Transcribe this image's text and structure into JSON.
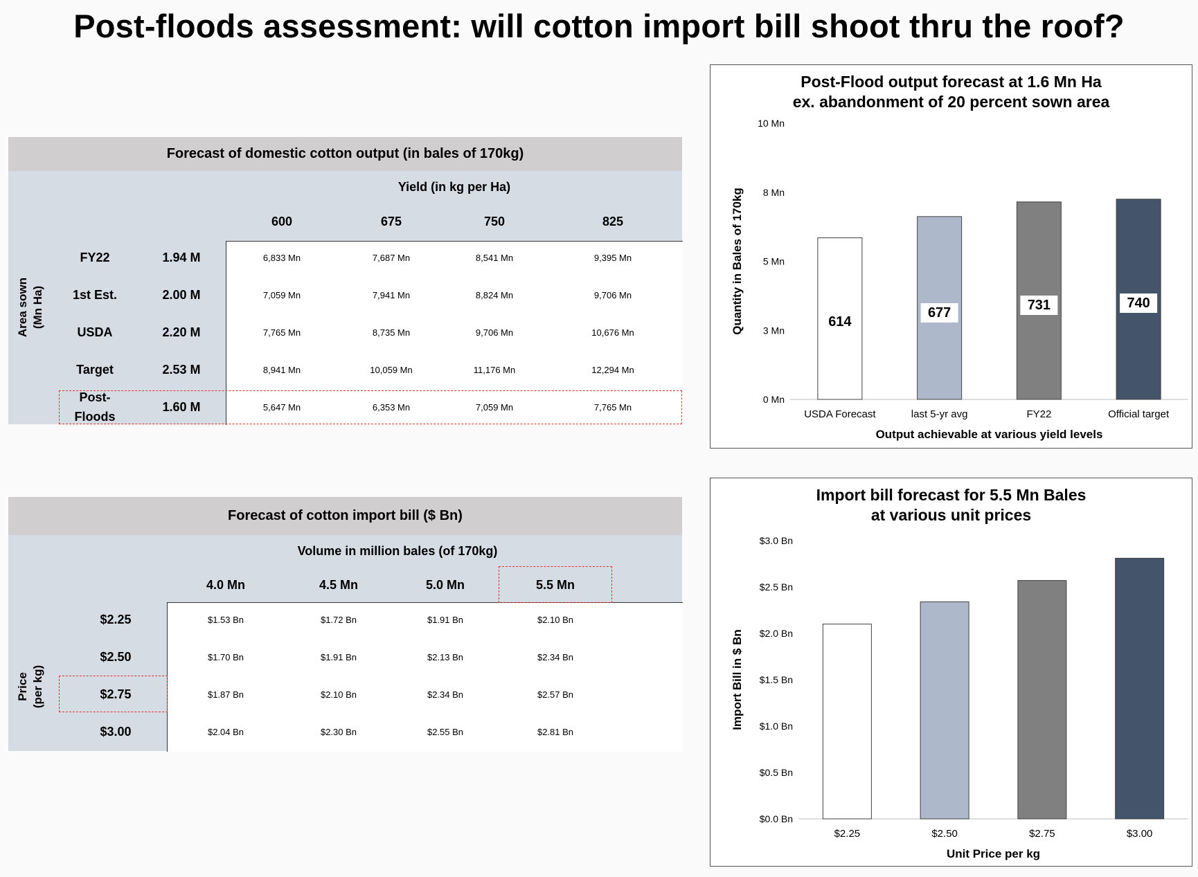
{
  "title": "Post-floods assessment: will cotton import bill shoot thru the roof?",
  "output_table": {
    "title": "Forecast of domestic cotton output (in bales of 170kg)",
    "col_group": "Yield (in kg per Ha)",
    "row_group": [
      "Area sown",
      "(Mn Ha)"
    ],
    "columns": [
      "600",
      "675",
      "750",
      "825"
    ],
    "rows": [
      {
        "label": "FY22",
        "area": "1.94 M",
        "values": [
          "6,833 Mn",
          "7,687 Mn",
          "8,541 Mn",
          "9,395 Mn"
        ]
      },
      {
        "label": "1st Est.",
        "area": "2.00 M",
        "values": [
          "7,059 Mn",
          "7,941 Mn",
          "8,824 Mn",
          "9,706 Mn"
        ]
      },
      {
        "label": "USDA",
        "area": "2.20 M",
        "values": [
          "7,765 Mn",
          "8,735 Mn",
          "9,706 Mn",
          "10,676 Mn"
        ]
      },
      {
        "label": "Target",
        "area": "2.53 M",
        "values": [
          "8,941 Mn",
          "10,059 Mn",
          "11,176 Mn",
          "12,294 Mn"
        ]
      },
      {
        "label": "Post-Floods",
        "label_lines": [
          "Post-",
          "Floods"
        ],
        "area": "1.60 M",
        "values": [
          "5,647 Mn",
          "6,353 Mn",
          "7,059 Mn",
          "7,765 Mn"
        ]
      }
    ],
    "highlight_color": "#d9342b"
  },
  "import_table": {
    "title": "Forecast of cotton import bill ($ Bn)",
    "col_group": "Volume in million bales (of 170kg)",
    "row_group": [
      "Price",
      "(per kg)"
    ],
    "columns": [
      "4.0 Mn",
      "4.5 Mn",
      "5.0 Mn",
      "5.5 Mn"
    ],
    "rows": [
      {
        "label": "$2.25",
        "values": [
          "$1.53 Bn",
          "$1.72 Bn",
          "$1.91 Bn",
          "$2.10 Bn"
        ]
      },
      {
        "label": "$2.50",
        "values": [
          "$1.70 Bn",
          "$1.91 Bn",
          "$2.13 Bn",
          "$2.34 Bn"
        ]
      },
      {
        "label": "$2.75",
        "values": [
          "$1.87 Bn",
          "$2.10 Bn",
          "$2.34 Bn",
          "$2.57 Bn"
        ]
      },
      {
        "label": "$3.00",
        "values": [
          "$2.04 Bn",
          "$2.30 Bn",
          "$2.55 Bn",
          "$2.81 Bn"
        ]
      }
    ]
  },
  "chart_data": [
    {
      "type": "bar",
      "title": [
        "Post-Flood output forecast at 1.6 Mn Ha",
        "ex. abandonment of 20 percent sown area"
      ],
      "xlabel": "Output achievable at various yield levels",
      "ylabel": "Quantity in Bales of 170kg",
      "categories": [
        "USDA Forecast",
        "last 5-yr avg",
        "FY22",
        "Official target"
      ],
      "values": [
        5.85,
        6.62,
        7.15,
        7.25
      ],
      "data_labels": [
        "614",
        "677",
        "731",
        "740"
      ],
      "yticks": [
        "0 Mn",
        "3 Mn",
        "5 Mn",
        "8 Mn",
        "10 Mn"
      ],
      "ylim": [
        0,
        10
      ],
      "grid": false,
      "colors": [
        "#ffffff",
        "#adb9ca",
        "#808080",
        "#44546a"
      ]
    },
    {
      "type": "bar",
      "title": [
        "Import bill forecast for 5.5 Mn Bales",
        "at various unit prices"
      ],
      "xlabel": "Unit Price per kg",
      "ylabel": "Import Bill in $ Bn",
      "categories": [
        "$2.25",
        "$2.50",
        "$2.75",
        "$3.00"
      ],
      "values": [
        2.1,
        2.34,
        2.57,
        2.81
      ],
      "yticks": [
        "$0.0 Bn",
        "$0.5 Bn",
        "$1.0 Bn",
        "$1.5 Bn",
        "$2.0 Bn",
        "$2.5 Bn",
        "$3.0 Bn"
      ],
      "ylim": [
        0,
        3
      ],
      "grid": false,
      "colors": [
        "#ffffff",
        "#adb9ca",
        "#808080",
        "#44546a"
      ]
    }
  ]
}
